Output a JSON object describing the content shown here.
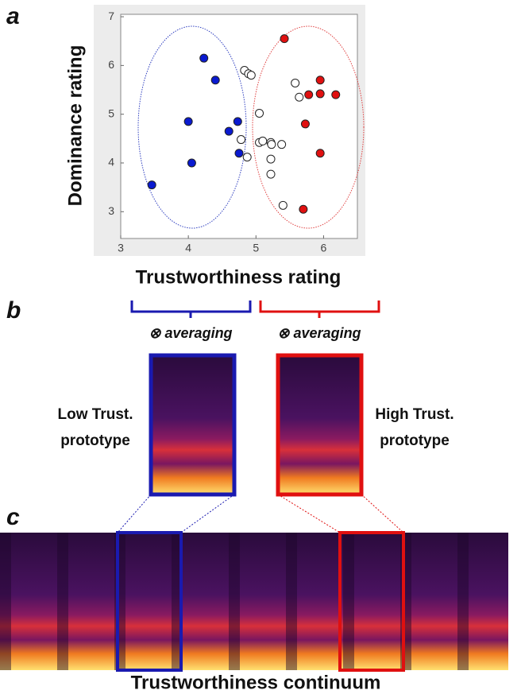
{
  "panel_labels": [
    "a",
    "b",
    "c"
  ],
  "chart_data": {
    "type": "scatter",
    "x_label": "Trustworthiness rating",
    "y_label": "Dominance rating",
    "xlim": [
      3,
      6.5
    ],
    "ylim": [
      2.45,
      7.05
    ],
    "xticks": [
      3,
      4,
      5,
      6
    ],
    "yticks": [
      3,
      4,
      5,
      6,
      7
    ],
    "series": [
      {
        "color": "#0a1ad0",
        "x": [
          3.46,
          4.23,
          4.4,
          4.0,
          4.05,
          4.6,
          4.73,
          4.75
        ],
        "y": [
          3.55,
          6.15,
          5.7,
          4.85,
          4.0,
          4.65,
          4.85,
          4.2
        ]
      },
      {
        "color": "#e01010",
        "x": [
          5.42,
          5.95,
          5.78,
          5.95,
          6.18,
          5.73,
          5.95,
          5.7
        ],
        "y": [
          6.55,
          5.7,
          5.4,
          5.42,
          5.4,
          4.8,
          4.2,
          3.05
        ]
      },
      {
        "color": "#ffffff",
        "x": [
          4.83,
          4.89,
          4.93,
          5.58,
          5.64,
          5.05,
          4.78,
          4.87,
          5.05,
          5.1,
          5.22,
          5.23,
          5.38,
          5.22,
          5.22,
          5.4
        ],
        "y": [
          5.9,
          5.83,
          5.8,
          5.64,
          5.35,
          5.02,
          4.48,
          4.12,
          4.42,
          4.45,
          4.42,
          4.38,
          4.38,
          4.08,
          3.77,
          3.13
        ]
      }
    ]
  },
  "averaging_labels": [
    "⊗ averaging",
    "⊗ averaging"
  ],
  "low_prototype": [
    "Low Trust.",
    "prototype"
  ],
  "high_prototype": [
    "High Trust.",
    "prototype"
  ],
  "continuum_label": "Trustworthiness continuum"
}
